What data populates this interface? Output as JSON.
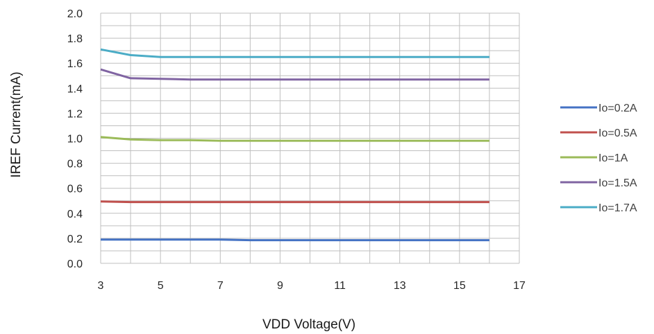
{
  "chart_data": {
    "type": "line",
    "title": "",
    "xlabel": "VDD Voltage(V)",
    "ylabel": "IREF Current(mA)",
    "xlim": [
      3,
      17
    ],
    "ylim": [
      0.0,
      2.0
    ],
    "xticks": [
      3,
      5,
      7,
      9,
      11,
      13,
      15,
      17
    ],
    "yticks": [
      "0.0",
      "0.2",
      "0.4",
      "0.6",
      "0.8",
      "1.0",
      "1.2",
      "1.4",
      "1.6",
      "1.8",
      "2.0"
    ],
    "grid": true,
    "legend_position": "right",
    "x": [
      3,
      4,
      5,
      6,
      7,
      8,
      9,
      10,
      11,
      12,
      13,
      14,
      15,
      16
    ],
    "series": [
      {
        "name": "Io=0.2A",
        "color": "#4472C4",
        "values": [
          0.19,
          0.19,
          0.19,
          0.19,
          0.19,
          0.185,
          0.185,
          0.185,
          0.185,
          0.185,
          0.185,
          0.185,
          0.185,
          0.185
        ]
      },
      {
        "name": "Io=0.5A",
        "color": "#C0504D",
        "values": [
          0.495,
          0.49,
          0.49,
          0.49,
          0.49,
          0.49,
          0.49,
          0.49,
          0.49,
          0.49,
          0.49,
          0.49,
          0.49,
          0.49
        ]
      },
      {
        "name": "Io=1A",
        "color": "#9BBB59",
        "values": [
          1.01,
          0.99,
          0.985,
          0.985,
          0.98,
          0.98,
          0.98,
          0.98,
          0.98,
          0.98,
          0.98,
          0.98,
          0.98,
          0.98
        ]
      },
      {
        "name": "Io=1.5A",
        "color": "#8064A2",
        "values": [
          1.55,
          1.48,
          1.475,
          1.47,
          1.47,
          1.47,
          1.47,
          1.47,
          1.47,
          1.47,
          1.47,
          1.47,
          1.47,
          1.47
        ]
      },
      {
        "name": "Io=1.7A",
        "color": "#4BACC6",
        "values": [
          1.71,
          1.665,
          1.65,
          1.65,
          1.65,
          1.65,
          1.65,
          1.65,
          1.65,
          1.65,
          1.65,
          1.65,
          1.65,
          1.65
        ]
      }
    ]
  }
}
